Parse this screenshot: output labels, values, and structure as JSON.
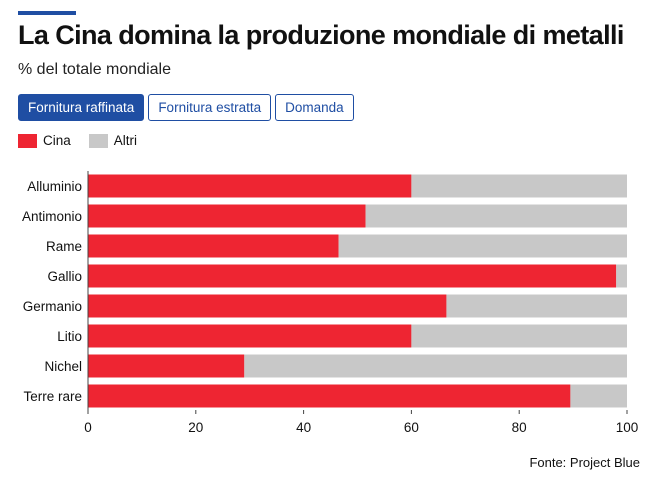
{
  "header": {
    "title": "La Cina domina la produzione mondiale di metalli",
    "subtitle": "% del totale mondiale"
  },
  "tabs": [
    {
      "label": "Fornitura raffinata",
      "active": true
    },
    {
      "label": "Fornitura estratta",
      "active": false
    },
    {
      "label": "Domanda",
      "active": false
    }
  ],
  "legend": [
    {
      "label": "Cina",
      "color": "#ee2532"
    },
    {
      "label": "Altri",
      "color": "#c8c8c8"
    }
  ],
  "chart_data": {
    "type": "bar",
    "orientation": "horizontal",
    "stacked": true,
    "categories": [
      "Alluminio",
      "Antimonio",
      "Rame",
      "Gallio",
      "Germanio",
      "Litio",
      "Nichel",
      "Terre rare"
    ],
    "series": [
      {
        "name": "Cina",
        "color": "#ee2532",
        "values": [
          60,
          51.5,
          46.5,
          98,
          66.5,
          60,
          29,
          89.5
        ]
      },
      {
        "name": "Altri",
        "color": "#c8c8c8",
        "values": [
          40,
          48.5,
          53.5,
          2,
          33.5,
          40,
          71,
          10.5
        ]
      }
    ],
    "xlim": [
      0,
      100
    ],
    "xticks": [
      0,
      20,
      40,
      60,
      80,
      100
    ],
    "grid": false,
    "legend_position": "top-left"
  },
  "footer": {
    "source": "Fonte: Project Blue"
  }
}
